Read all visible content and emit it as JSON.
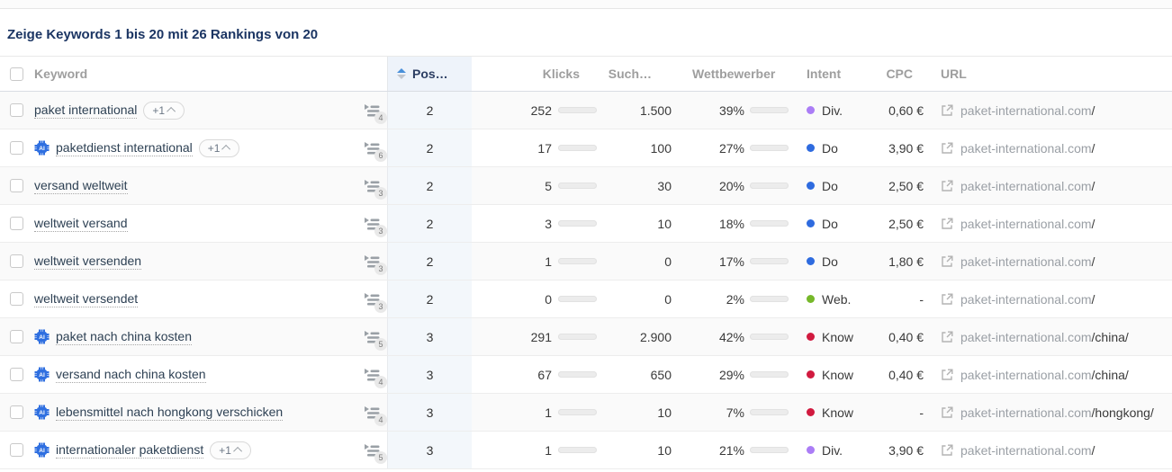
{
  "page": {
    "title": "Zeige Keywords 1 bis 20 mit 26 Rankings von 20"
  },
  "table": {
    "headers": {
      "keyword": "Keyword",
      "pos": "Pos…",
      "klicks": "Klicks",
      "such": "Such…",
      "wettbewerber": "Wettbewerber",
      "intent": "Intent",
      "cpc": "CPC",
      "url": "URL"
    },
    "sorted_column": "pos",
    "intent_colors": {
      "Div.": "#ab7df6",
      "Do": "#2e6bdf",
      "Web.": "#76b82a",
      "Know": "#d11a3f"
    },
    "bar_colors": {
      "klicks": "#3e7de0",
      "wettbewerb": "#cb2a4c"
    },
    "rows": [
      {
        "keyword": "paket international",
        "ai": false,
        "plus": "+1",
        "serp_count": "4",
        "pos": "2",
        "klicks": "252",
        "klicks_bar_pct": 38,
        "such": "1.500",
        "wettbewerb": "39%",
        "wettb_bar_pct": 39,
        "intent": "Div.",
        "cpc": "0,60 €",
        "url_domain": "paket-international.com",
        "url_path": "/"
      },
      {
        "keyword": "paketdienst international",
        "ai": true,
        "plus": "+1",
        "serp_count": "6",
        "pos": "2",
        "klicks": "17",
        "klicks_bar_pct": 12,
        "such": "100",
        "wettbewerb": "27%",
        "wettb_bar_pct": 27,
        "intent": "Do",
        "cpc": "3,90 €",
        "url_domain": "paket-international.com",
        "url_path": "/"
      },
      {
        "keyword": "versand weltweit",
        "ai": false,
        "plus": null,
        "serp_count": "3",
        "pos": "2",
        "klicks": "5",
        "klicks_bar_pct": 9,
        "such": "30",
        "wettbewerb": "20%",
        "wettb_bar_pct": 20,
        "intent": "Do",
        "cpc": "2,50 €",
        "url_domain": "paket-international.com",
        "url_path": "/"
      },
      {
        "keyword": "weltweit versand",
        "ai": false,
        "plus": null,
        "serp_count": "3",
        "pos": "2",
        "klicks": "3",
        "klicks_bar_pct": 8,
        "such": "10",
        "wettbewerb": "18%",
        "wettb_bar_pct": 18,
        "intent": "Do",
        "cpc": "2,50 €",
        "url_domain": "paket-international.com",
        "url_path": "/"
      },
      {
        "keyword": "weltweit versenden",
        "ai": false,
        "plus": null,
        "serp_count": "3",
        "pos": "2",
        "klicks": "1",
        "klicks_bar_pct": 6,
        "such": "0",
        "wettbewerb": "17%",
        "wettb_bar_pct": 17,
        "intent": "Do",
        "cpc": "1,80 €",
        "url_domain": "paket-international.com",
        "url_path": "/"
      },
      {
        "keyword": "weltweit versendet",
        "ai": false,
        "plus": null,
        "serp_count": "3",
        "pos": "2",
        "klicks": "0",
        "klicks_bar_pct": 5,
        "such": "0",
        "wettbewerb": "2%",
        "wettb_bar_pct": 4,
        "intent": "Web.",
        "cpc": "-",
        "url_domain": "paket-international.com",
        "url_path": "/"
      },
      {
        "keyword": "paket nach china kosten",
        "ai": true,
        "plus": null,
        "serp_count": "5",
        "pos": "3",
        "klicks": "291",
        "klicks_bar_pct": 40,
        "such": "2.900",
        "wettbewerb": "42%",
        "wettb_bar_pct": 42,
        "intent": "Know",
        "cpc": "0,40 €",
        "url_domain": "paket-international.com",
        "url_path": "/china/"
      },
      {
        "keyword": "versand nach china kosten",
        "ai": true,
        "plus": null,
        "serp_count": "4",
        "pos": "3",
        "klicks": "67",
        "klicks_bar_pct": 20,
        "such": "650",
        "wettbewerb": "29%",
        "wettb_bar_pct": 29,
        "intent": "Know",
        "cpc": "0,40 €",
        "url_domain": "paket-international.com",
        "url_path": "/china/"
      },
      {
        "keyword": "lebensmittel nach hongkong verschicken",
        "ai": true,
        "plus": null,
        "serp_count": "4",
        "pos": "3",
        "klicks": "1",
        "klicks_bar_pct": 6,
        "such": "10",
        "wettbewerb": "7%",
        "wettb_bar_pct": 7,
        "intent": "Know",
        "cpc": "-",
        "url_domain": "paket-international.com",
        "url_path": "/hongkong/"
      },
      {
        "keyword": "internationaler paketdienst",
        "ai": true,
        "plus": "+1",
        "serp_count": "5",
        "pos": "3",
        "klicks": "1",
        "klicks_bar_pct": 6,
        "such": "10",
        "wettbewerb": "21%",
        "wettb_bar_pct": 21,
        "intent": "Div.",
        "cpc": "3,90 €",
        "url_domain": "paket-international.com",
        "url_path": "/"
      }
    ]
  }
}
